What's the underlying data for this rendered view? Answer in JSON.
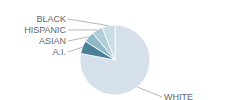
{
  "chart_data": {
    "type": "pie",
    "categories": [
      "WHITE",
      "A.I.",
      "ASIAN",
      "HISPANIC",
      "BLACK"
    ],
    "values": [
      78,
      6,
      5,
      5,
      6
    ],
    "colors": [
      "#d6e0ea",
      "#4a8098",
      "#8fb8c8",
      "#b0cdd8",
      "#c8dde6"
    ]
  }
}
